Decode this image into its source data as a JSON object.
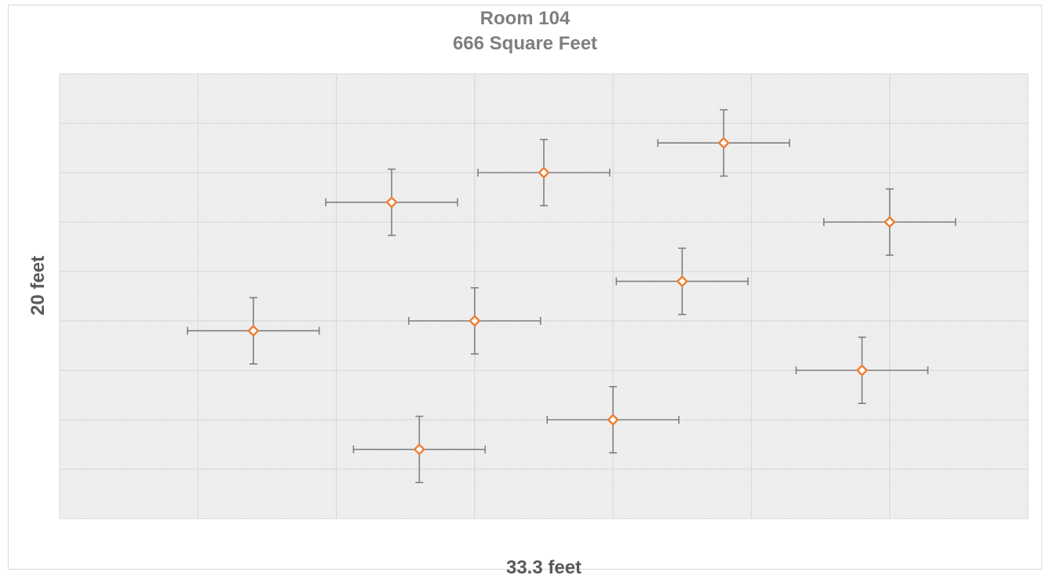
{
  "chart_data": {
    "type": "scatter",
    "title_lines": [
      "Room 104",
      "666 Square Feet"
    ],
    "xlabel": "33.3 feet",
    "ylabel": "20 feet",
    "xlim": [
      0,
      35
    ],
    "ylim": [
      0,
      9
    ],
    "grid": true,
    "colors": {
      "plot_background": "#efefef",
      "grid": "#d9d9d9",
      "marker_stroke": "#ed7d31",
      "marker_fill": "#ffffff",
      "error_bar": "#7f7f7f"
    },
    "marker_shape": "diamond",
    "error_bars": {
      "x": 2.38,
      "y": 0.67
    },
    "points": [
      {
        "x": 7.0,
        "y": 3.8
      },
      {
        "x": 12.0,
        "y": 6.4
      },
      {
        "x": 13.0,
        "y": 1.4
      },
      {
        "x": 15.0,
        "y": 4.0
      },
      {
        "x": 17.5,
        "y": 7.0
      },
      {
        "x": 20.0,
        "y": 2.0
      },
      {
        "x": 22.5,
        "y": 4.8
      },
      {
        "x": 24.0,
        "y": 7.6
      },
      {
        "x": 29.0,
        "y": 3.0
      },
      {
        "x": 30.0,
        "y": 6.0
      }
    ]
  }
}
